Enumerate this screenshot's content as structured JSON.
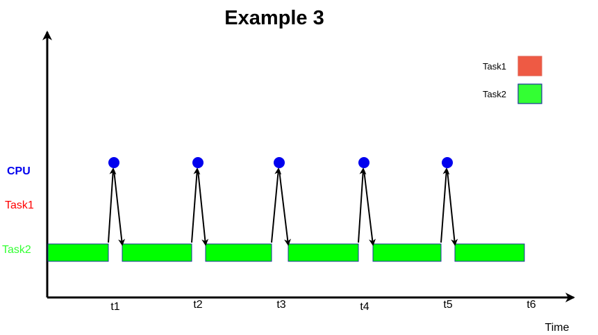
{
  "title": "Example 3",
  "x_axis_label": "Time",
  "rows": [
    {
      "id": "cpu",
      "label": "CPU",
      "color": "#0000ee"
    },
    {
      "id": "task1",
      "label": "Task1",
      "color": "#ff0000"
    },
    {
      "id": "task2",
      "label": "Task2",
      "color": "#33ff33"
    }
  ],
  "ticks": [
    "t1",
    "t2",
    "t3",
    "t4",
    "t5",
    "t6"
  ],
  "legend": [
    {
      "label": "Task1",
      "color": "#ee5a44"
    },
    {
      "label": "Task2",
      "color": "#33ff33"
    }
  ],
  "colors": {
    "task2_bar": "#00ff00",
    "cpu_dot": "#0000ee",
    "bar_outline": "#1a3399",
    "axis": "#000000"
  }
}
